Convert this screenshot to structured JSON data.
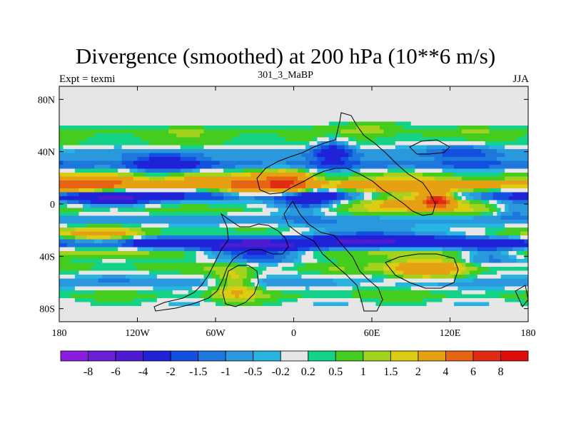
{
  "chart_data": {
    "type": "heatmap",
    "title": "Divergence (smoothed) at 200 hPa (10**6 m/s)",
    "subtitle_left": "Expt = texmi",
    "subtitle_center": "301_3_MaBP",
    "subtitle_right": "JJA",
    "x_ticks": [
      {
        "value": -180,
        "label": "180"
      },
      {
        "value": -120,
        "label": "120W"
      },
      {
        "value": -60,
        "label": "60W"
      },
      {
        "value": 0,
        "label": "0"
      },
      {
        "value": 60,
        "label": "60E"
      },
      {
        "value": 120,
        "label": "120E"
      },
      {
        "value": 180,
        "label": "180"
      }
    ],
    "y_ticks": [
      {
        "value": 80,
        "label": "80N"
      },
      {
        "value": 40,
        "label": "40N"
      },
      {
        "value": 0,
        "label": "0"
      },
      {
        "value": -40,
        "label": "40S"
      },
      {
        "value": -80,
        "label": "80S"
      }
    ],
    "xlim": [
      -180,
      180
    ],
    "ylim": [
      -90,
      90
    ],
    "colorbar": {
      "levels": [
        "-8",
        "-6",
        "-4",
        "-2",
        "-1.5",
        "-1",
        "-0.5",
        "-0.2",
        "0.2",
        "0.5",
        "1",
        "1.5",
        "2",
        "4",
        "6",
        "8"
      ],
      "colors": [
        "#8a1ee0",
        "#6c1ed6",
        "#4f1ad0",
        "#2022d8",
        "#1350e0",
        "#1e78dc",
        "#2a98dc",
        "#28b4e0",
        "#e6e6e6",
        "#14d288",
        "#44cc1e",
        "#a0d21e",
        "#dccc14",
        "#e6a014",
        "#e66414",
        "#e02c14",
        "#e00c0c"
      ]
    },
    "bands": [
      {
        "lat": 55,
        "value": 0.8
      },
      {
        "lat": 48,
        "value": 0.6
      },
      {
        "lat": 38,
        "value": -0.8
      },
      {
        "lat": 30,
        "value": -1.5
      },
      {
        "lat": 22,
        "value": 0.6
      },
      {
        "lat": 15,
        "value": 2.2
      },
      {
        "lat": 6,
        "value": -2.5
      },
      {
        "lat": -5,
        "value": 0.7
      },
      {
        "lat": -12,
        "value": -0.9
      },
      {
        "lat": -22,
        "value": 1.0
      },
      {
        "lat": -30,
        "value": -2.4
      },
      {
        "lat": -38,
        "value": 1.2
      },
      {
        "lat": -48,
        "value": 0.8
      },
      {
        "lat": -60,
        "value": -1.0
      },
      {
        "lat": -70,
        "value": 0.6
      }
    ],
    "blobs": [
      {
        "lon": -165,
        "lat": 15,
        "rlon": 40,
        "rlat": 7,
        "value": 4
      },
      {
        "lon": -140,
        "lat": 5,
        "rlon": 35,
        "rlat": 6,
        "value": -2.2
      },
      {
        "lon": -150,
        "lat": -25,
        "rlon": 35,
        "rlat": 8,
        "value": 1.8
      },
      {
        "lon": -110,
        "lat": -28,
        "rlon": 30,
        "rlat": 6,
        "value": -1.2
      },
      {
        "lon": -80,
        "lat": 20,
        "rlon": 25,
        "rlat": 6,
        "value": 1.5
      },
      {
        "lon": -100,
        "lat": 30,
        "rlon": 25,
        "rlat": 8,
        "value": -2.0
      },
      {
        "lon": -35,
        "lat": 12,
        "rlon": 22,
        "rlat": 9,
        "value": 3.0
      },
      {
        "lon": -5,
        "lat": 15,
        "rlon": 18,
        "rlat": 10,
        "value": 4.5
      },
      {
        "lon": 10,
        "lat": 2,
        "rlon": 25,
        "rlat": 10,
        "value": -2.5
      },
      {
        "lon": -30,
        "lat": -35,
        "rlon": 40,
        "rlat": 10,
        "value": -3.5
      },
      {
        "lon": -45,
        "lat": -60,
        "rlon": 18,
        "rlat": 14,
        "value": 2.2
      },
      {
        "lon": 30,
        "lat": 42,
        "rlon": 15,
        "rlat": 9,
        "value": -2.5
      },
      {
        "lon": 60,
        "lat": 60,
        "rlon": 25,
        "rlat": 6,
        "value": 0.8
      },
      {
        "lon": 90,
        "lat": 5,
        "rlon": 45,
        "rlat": 10,
        "value": 4.0
      },
      {
        "lon": 110,
        "lat": 3,
        "rlon": 10,
        "rlat": 5,
        "value": 6.5
      },
      {
        "lon": 70,
        "lat": -25,
        "rlon": 55,
        "rlat": 7,
        "value": -3.0
      },
      {
        "lon": 100,
        "lat": -50,
        "rlon": 30,
        "rlat": 8,
        "value": 3.0
      },
      {
        "lon": 150,
        "lat": -40,
        "rlon": 25,
        "rlat": 9,
        "value": -2.0
      },
      {
        "lon": 130,
        "lat": 42,
        "rlon": 25,
        "rlat": 7,
        "value": -1.5
      },
      {
        "lon": 60,
        "lat": -62,
        "rlon": 30,
        "rlat": 6,
        "value": 0.7
      },
      {
        "lon": 170,
        "lat": -5,
        "rlon": 15,
        "rlat": 6,
        "value": -1.5
      }
    ],
    "clear_zones": [
      {
        "lat_min": 62,
        "lat_max": 90,
        "value": 0
      },
      {
        "lat_min": -90,
        "lat_max": -78,
        "value": 0
      }
    ]
  }
}
